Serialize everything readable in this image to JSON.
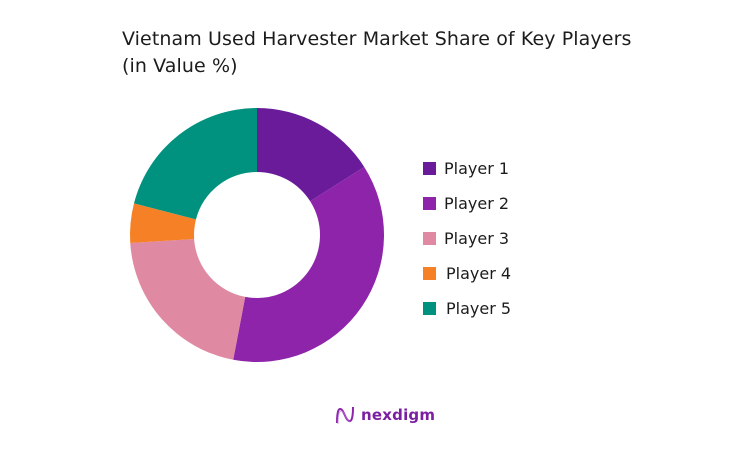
{
  "title_lines": [
    "Vietnam Used Harvester Market Share of Key Players",
    "(in Value %)"
  ],
  "brand": {
    "name": "nexdigm",
    "icon": "nexdigm-logo-icon"
  },
  "chart_data": {
    "type": "pie",
    "variant": "donut",
    "title": "Vietnam Used Harvester Market Share of Key Players (in Value %)",
    "categories": [
      "Player 1",
      "Player 2",
      "Player 3",
      "Player 4",
      "Player 5"
    ],
    "values": [
      16,
      37,
      21,
      5,
      21
    ],
    "colors": [
      "#6A1B9A",
      "#8E24AA",
      "#DF89A3",
      "#F58025",
      "#00917F"
    ],
    "start_angle_deg": 0,
    "direction": "clockwise",
    "legend_position": "right",
    "data_labels": false
  }
}
